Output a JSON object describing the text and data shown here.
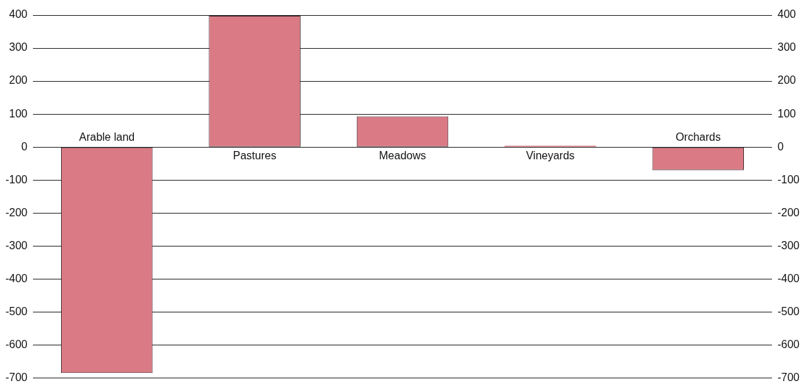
{
  "chart_data": {
    "type": "bar",
    "categories": [
      "Arable land",
      "Pastures",
      "Meadows",
      "Vineyards",
      "Orchards"
    ],
    "values": [
      -685,
      398,
      93,
      4,
      -70
    ],
    "color": "#d97a85",
    "ylim": [
      -700,
      400
    ],
    "yticks": [
      -700,
      -600,
      -500,
      -400,
      -300,
      -200,
      -100,
      0,
      100,
      200,
      300,
      400
    ],
    "y2lim": [
      -700,
      400
    ],
    "y2ticks": [
      -700,
      -600,
      -500,
      -400,
      -300,
      -200,
      -100,
      0,
      100,
      200,
      300,
      400
    ],
    "grid": "y",
    "legend": false
  }
}
